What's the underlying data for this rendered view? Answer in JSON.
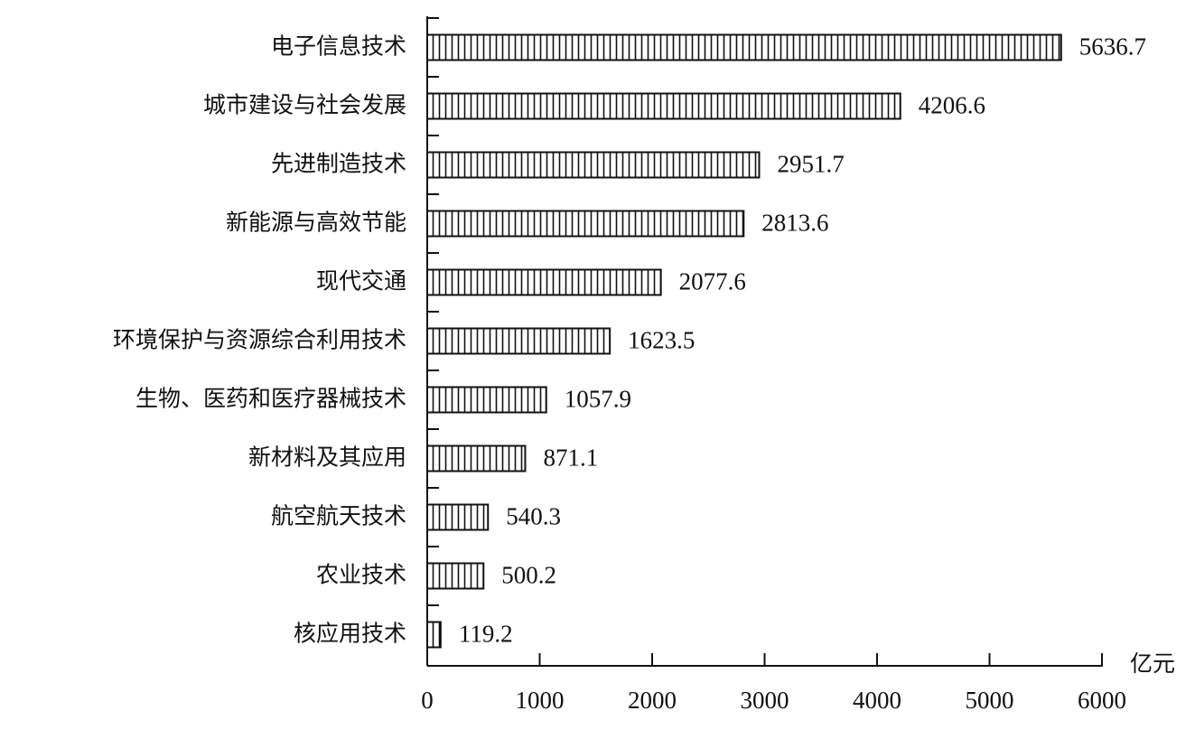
{
  "chart_data": {
    "type": "bar",
    "orientation": "horizontal",
    "categories": [
      "电子信息技术",
      "城市建设与社会发展",
      "先进制造技术",
      "新能源与高效节能",
      "现代交通",
      "环境保护与资源综合利用技术",
      "生物、医药和医疗器械技术",
      "新材料及其应用",
      "航空航天技术",
      "农业技术",
      "核应用技术"
    ],
    "values": [
      5636.7,
      4206.6,
      2951.7,
      2813.6,
      2077.6,
      1623.5,
      1057.9,
      871.1,
      540.3,
      500.2,
      119.2
    ],
    "color": "#111111",
    "xlabel": "亿元",
    "xlim": [
      0,
      6000
    ],
    "xticks": [
      0,
      1000,
      2000,
      3000,
      4000,
      5000,
      6000
    ]
  }
}
